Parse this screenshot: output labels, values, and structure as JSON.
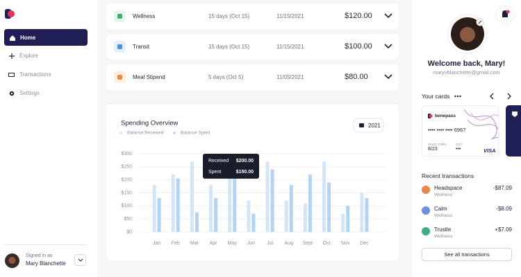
{
  "sidebar": {
    "nav": [
      "Home",
      "Explore",
      "Transactions",
      "Settings"
    ],
    "signed_in_label": "Signed in as",
    "user_name": "Mary Blanchette"
  },
  "benefits": [
    {
      "name": "Wellness",
      "days": "15 days (Oct 15)",
      "date": "11/15/2021",
      "amount": "$120.00"
    },
    {
      "name": "Transit",
      "days": "15 days (Oct 15)",
      "date": "11/15/2021",
      "amount": "$100.00"
    },
    {
      "name": "Meal Stipend",
      "days": "5 days (Oct 5)",
      "date": "11/05/2021",
      "amount": "$80.00"
    }
  ],
  "chart_data": {
    "type": "bar",
    "title": "Spending Overview",
    "year": "2021",
    "categories": [
      "Jan",
      "Feb",
      "Mar",
      "Apr",
      "May",
      "Jun",
      "Jul",
      "Aug",
      "Sept",
      "Oct",
      "Nov",
      "Dec"
    ],
    "series": [
      {
        "name": "Balance Received",
        "color": "#d3e5f9",
        "values": [
          180,
          220,
          270,
          180,
          270,
          120,
          270,
          120,
          110,
          270,
          70,
          150
        ]
      },
      {
        "name": "Balance Spent",
        "color": "#b3d3f6",
        "values": [
          130,
          205,
          75,
          130,
          240,
          70,
          240,
          180,
          220,
          190,
          100,
          130
        ]
      }
    ],
    "ylim": [
      0,
      300
    ],
    "yticks": [
      {
        "value": 0,
        "label": "$0"
      },
      {
        "value": 50,
        "label": "$50"
      },
      {
        "value": 100,
        "label": "$100"
      },
      {
        "value": 150,
        "label": "$150"
      },
      {
        "value": 200,
        "label": "$200"
      },
      {
        "value": 250,
        "label": "$250"
      },
      {
        "value": 300,
        "label": "$300"
      }
    ],
    "grid": true,
    "tooltip": {
      "received_label": "Received",
      "received_value": "$200.00",
      "spent_label": "Spent",
      "spent_value": "$150.00"
    }
  },
  "profile": {
    "welcome": "Welcome back, Mary!",
    "email": "maryvblanchette@gmail.com"
  },
  "cards": {
    "title": "Your cards",
    "brand": "benepass",
    "number": "•••• •••• •••• 6967",
    "valid_label": "VALID THRU",
    "valid": "8/23",
    "cvc_label": "CVC",
    "cvc": "•••",
    "network": "VISA"
  },
  "recent": {
    "title": "Recent transactions",
    "items": [
      {
        "name": "Headspace",
        "category": "Wellness",
        "amount": "-$87.09"
      },
      {
        "name": "Calm",
        "category": "Wellness",
        "amount": "-$8.09"
      },
      {
        "name": "Trustle",
        "category": "Wellness",
        "amount": "+$7.09"
      }
    ],
    "button": "See all transactions"
  }
}
